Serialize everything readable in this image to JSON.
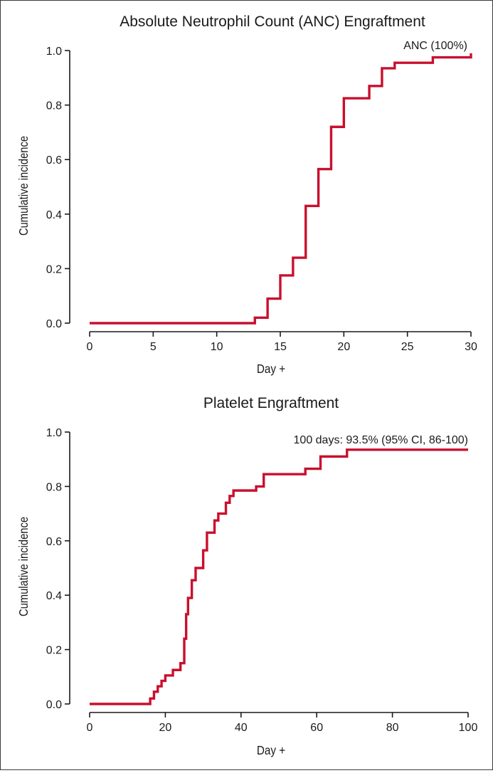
{
  "chart_data": [
    {
      "type": "line",
      "step": true,
      "title": "Absolute Neutrophil Count (ANC) Engraftment",
      "xlabel": "Day +",
      "ylabel": "Cumulative incidence",
      "xlim": [
        0,
        30
      ],
      "ylim": [
        0,
        1.0
      ],
      "xticks": [
        0,
        5,
        10,
        15,
        20,
        25,
        30
      ],
      "yticks": [
        0.0,
        0.2,
        0.4,
        0.6,
        0.8,
        1.0
      ],
      "xtick_labels": [
        "0",
        "5",
        "10",
        "15",
        "20",
        "25",
        "30"
      ],
      "ytick_labels": [
        "0.0",
        "0.2",
        "0.4",
        "0.6",
        "0.8",
        "1.0"
      ],
      "grid": false,
      "series": [
        {
          "name": "ANC",
          "color": "#c8102e",
          "x": [
            0,
            13,
            14,
            15,
            16,
            17,
            18,
            19,
            20,
            22,
            23,
            24,
            27,
            30
          ],
          "y": [
            0.0,
            0.02,
            0.09,
            0.175,
            0.24,
            0.43,
            0.565,
            0.72,
            0.825,
            0.87,
            0.935,
            0.955,
            0.975,
            0.99
          ]
        }
      ],
      "annotation": "ANC (100%)"
    },
    {
      "type": "line",
      "step": true,
      "title": "Platelet Engraftment",
      "xlabel": "Day +",
      "ylabel": "Cumulative incidence",
      "xlim": [
        0,
        100
      ],
      "ylim": [
        0,
        1.0
      ],
      "xticks": [
        0,
        20,
        40,
        60,
        80,
        100
      ],
      "yticks": [
        0.0,
        0.2,
        0.4,
        0.6,
        0.8,
        1.0
      ],
      "xtick_labels": [
        "0",
        "20",
        "40",
        "60",
        "80",
        "100"
      ],
      "ytick_labels": [
        "0.0",
        "0.2",
        "0.4",
        "0.6",
        "0.8",
        "1.0"
      ],
      "grid": false,
      "series": [
        {
          "name": "Platelet",
          "color": "#c8102e",
          "x": [
            0,
            16,
            17,
            18,
            19,
            20,
            22,
            24,
            25,
            25.5,
            26,
            27,
            28,
            30,
            31,
            33,
            34,
            36,
            37,
            38,
            44,
            46,
            57,
            61,
            68,
            100
          ],
          "y": [
            0.0,
            0.02,
            0.045,
            0.065,
            0.085,
            0.105,
            0.125,
            0.15,
            0.24,
            0.33,
            0.39,
            0.455,
            0.5,
            0.565,
            0.63,
            0.675,
            0.7,
            0.74,
            0.765,
            0.785,
            0.8,
            0.845,
            0.865,
            0.91,
            0.935,
            0.935
          ]
        }
      ],
      "annotation": "100 days: 93.5% (95% CI, 86-100)"
    }
  ]
}
